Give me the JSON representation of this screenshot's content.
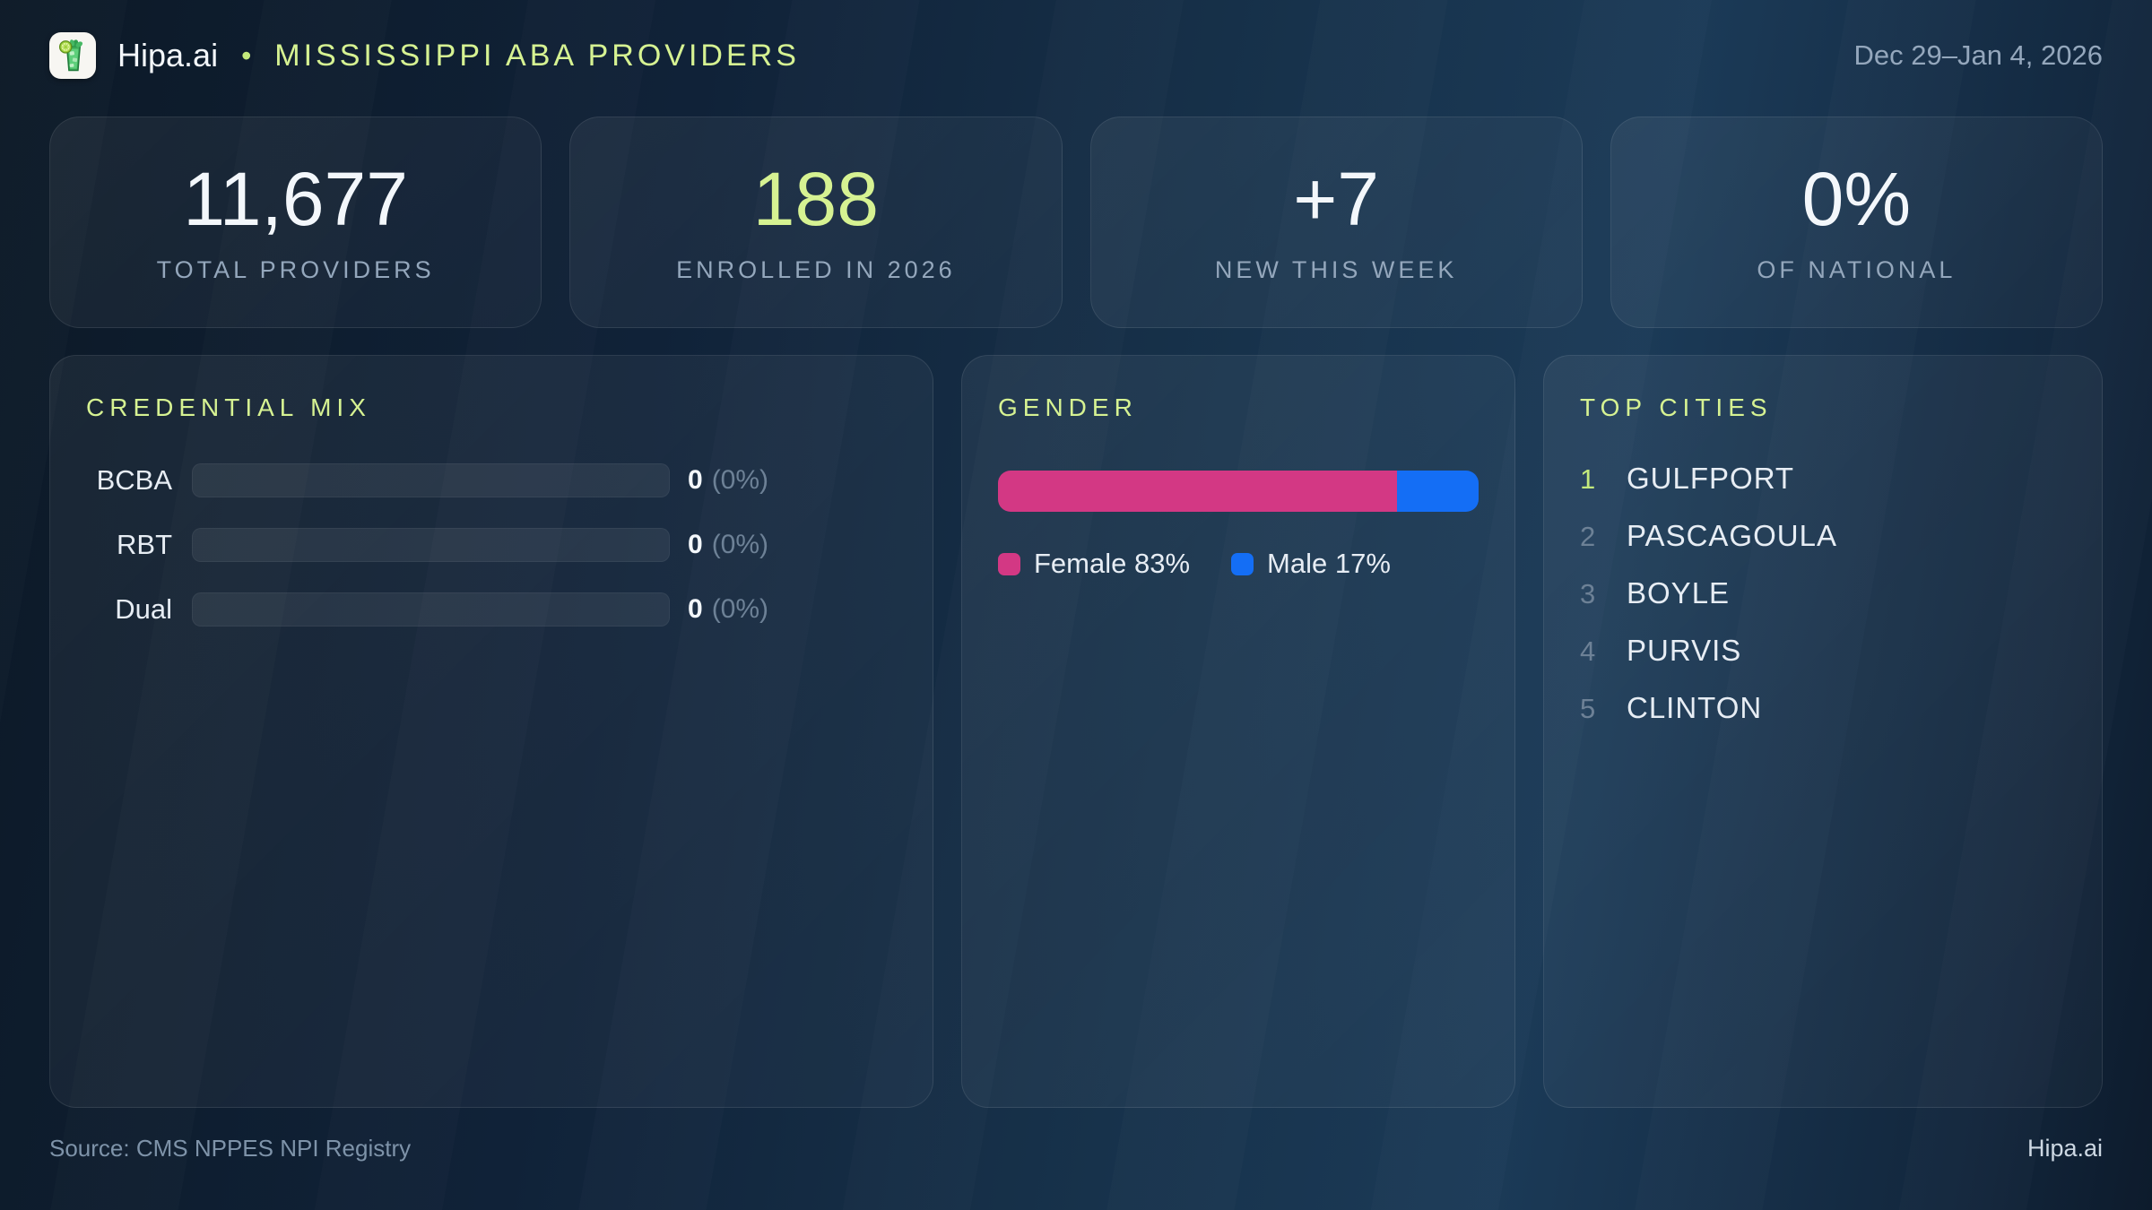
{
  "header": {
    "brand": "Hipa.ai",
    "separator": "•",
    "title": "MISSISSIPPI ABA PROVIDERS",
    "date_range": "Dec 29–Jan 4, 2026",
    "logo_icon": "mojito-glass-icon"
  },
  "stats": [
    {
      "value": "11,677",
      "label": "TOTAL PROVIDERS"
    },
    {
      "value": "188",
      "label": "ENROLLED IN 2026"
    },
    {
      "value": "+7",
      "label": "NEW THIS WEEK"
    },
    {
      "value": "0%",
      "label": "OF NATIONAL"
    }
  ],
  "credential_mix": {
    "title": "CREDENTIAL MIX",
    "rows": [
      {
        "label": "BCBA",
        "count": "0",
        "percent": "(0%)",
        "fill_pct": 0
      },
      {
        "label": "RBT",
        "count": "0",
        "percent": "(0%)",
        "fill_pct": 0
      },
      {
        "label": "Dual",
        "count": "0",
        "percent": "(0%)",
        "fill_pct": 0
      }
    ]
  },
  "gender": {
    "title": "GENDER",
    "female_pct": 83,
    "male_pct": 17,
    "female_label": "Female 83%",
    "male_label": "Male 17%"
  },
  "top_cities": {
    "title": "TOP CITIES",
    "items": [
      {
        "rank": "1",
        "name": "GULFPORT"
      },
      {
        "rank": "2",
        "name": "PASCAGOULA"
      },
      {
        "rank": "3",
        "name": "BOYLE"
      },
      {
        "rank": "4",
        "name": "PURVIS"
      },
      {
        "rank": "5",
        "name": "CLINTON"
      }
    ]
  },
  "footer": {
    "source": "Source: CMS NPPES NPI Registry",
    "brand": "Hipa.ai"
  },
  "colors": {
    "accent": "#d6f292",
    "female": "#d33884",
    "male": "#146ef5"
  }
}
